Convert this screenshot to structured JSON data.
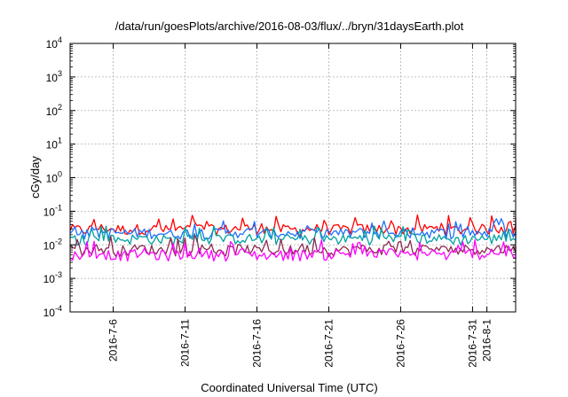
{
  "chart_data": {
    "type": "line",
    "title": "/data/run/goesPlots/archive/2016-08-03/flux/../bryn/31daysEarth.plot",
    "xlabel": "Coordinated Universal Time (UTC)",
    "ylabel": "cGy/day",
    "yscale": "log",
    "ylim": [
      0.0001,
      10000
    ],
    "xlim": [
      "2016-07-03",
      "2016-08-03"
    ],
    "grid": true,
    "legend": "none",
    "y_ticks": [
      {
        "value": 0.0001,
        "base": "10",
        "exp": "-4"
      },
      {
        "value": 0.001,
        "base": "10",
        "exp": "-3"
      },
      {
        "value": 0.01,
        "base": "10",
        "exp": "-2"
      },
      {
        "value": 0.1,
        "base": "10",
        "exp": "-1"
      },
      {
        "value": 1,
        "base": "10",
        "exp": "0"
      },
      {
        "value": 10,
        "base": "10",
        "exp": "1"
      },
      {
        "value": 100,
        "base": "10",
        "exp": "2"
      },
      {
        "value": 1000,
        "base": "10",
        "exp": "3"
      },
      {
        "value": 10000,
        "base": "10",
        "exp": "4"
      }
    ],
    "x_ticks": [
      {
        "date": "2016-07-06",
        "label": "2016-7-6"
      },
      {
        "date": "2016-07-11",
        "label": "2016-7-11"
      },
      {
        "date": "2016-07-16",
        "label": "2016-7-16"
      },
      {
        "date": "2016-07-21",
        "label": "2016-7-21"
      },
      {
        "date": "2016-07-26",
        "label": "2016-7-26"
      },
      {
        "date": "2016-07-31",
        "label": "2016-7-31"
      },
      {
        "date": "2016-08-01",
        "label": "2016-8-1"
      }
    ],
    "series": [
      {
        "color": "#ff0000",
        "values_per_day": [
          0.03,
          0.028,
          0.032,
          0.03,
          0.029,
          0.031,
          0.03,
          0.028,
          0.03,
          0.031,
          0.029,
          0.03,
          0.032,
          0.031,
          0.029,
          0.03,
          0.028,
          0.031,
          0.03,
          0.029,
          0.031,
          0.03,
          0.032,
          0.029,
          0.03,
          0.031,
          0.03,
          0.028,
          0.031,
          0.03,
          0.032,
          0.03
        ]
      },
      {
        "color": "#1f6fff",
        "values_per_day": [
          0.022,
          0.021,
          0.024,
          0.023,
          0.022,
          0.024,
          0.023,
          0.021,
          0.023,
          0.024,
          0.022,
          0.023,
          0.025,
          0.023,
          0.022,
          0.023,
          0.021,
          0.024,
          0.023,
          0.022,
          0.024,
          0.023,
          0.025,
          0.022,
          0.023,
          0.024,
          0.023,
          0.021,
          0.024,
          0.023,
          0.025,
          0.023
        ]
      },
      {
        "color": "#00a0a0",
        "values_per_day": [
          0.015,
          0.014,
          0.016,
          0.015,
          0.015,
          0.016,
          0.015,
          0.014,
          0.015,
          0.016,
          0.015,
          0.015,
          0.016,
          0.015,
          0.014,
          0.015,
          0.014,
          0.016,
          0.015,
          0.015,
          0.016,
          0.015,
          0.016,
          0.014,
          0.015,
          0.016,
          0.015,
          0.014,
          0.016,
          0.015,
          0.016,
          0.015
        ]
      },
      {
        "color": "#8b2a50",
        "values_per_day": [
          0.007,
          0.007,
          0.008,
          0.007,
          0.007,
          0.008,
          0.007,
          0.007,
          0.007,
          0.008,
          0.007,
          0.007,
          0.008,
          0.007,
          0.007,
          0.007,
          0.007,
          0.008,
          0.007,
          0.007,
          0.008,
          0.007,
          0.008,
          0.007,
          0.007,
          0.008,
          0.007,
          0.007,
          0.008,
          0.007,
          0.008,
          0.007
        ]
      },
      {
        "color": "#ff00ff",
        "values_per_day": [
          0.005,
          0.005,
          0.006,
          0.005,
          0.005,
          0.006,
          0.005,
          0.005,
          0.005,
          0.006,
          0.005,
          0.005,
          0.006,
          0.005,
          0.005,
          0.005,
          0.005,
          0.006,
          0.005,
          0.005,
          0.006,
          0.005,
          0.006,
          0.005,
          0.005,
          0.006,
          0.005,
          0.005,
          0.006,
          0.005,
          0.006,
          0.005
        ]
      }
    ]
  }
}
